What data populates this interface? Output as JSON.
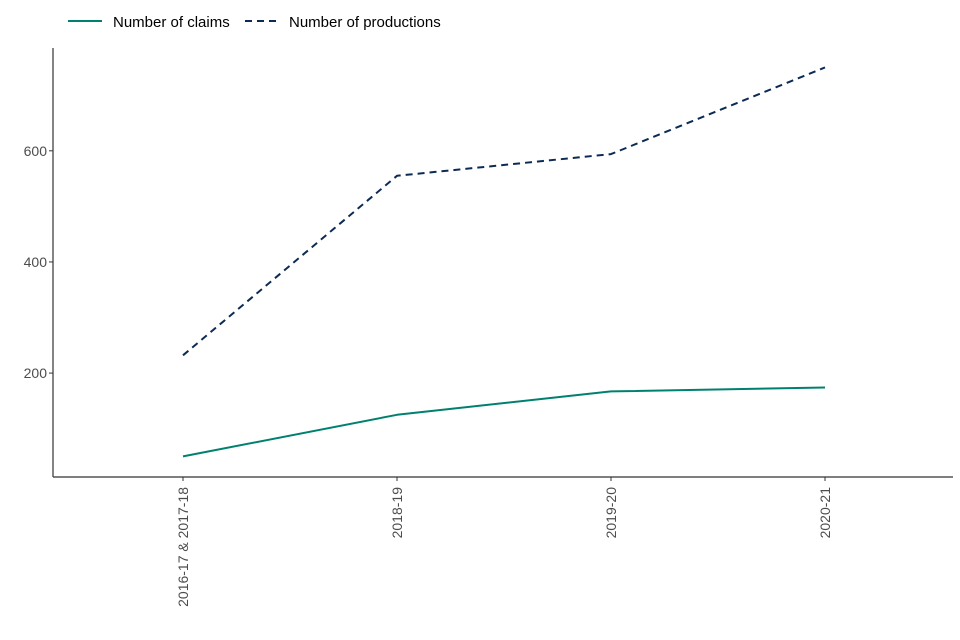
{
  "chart_data": {
    "type": "line",
    "title": "",
    "xlabel": "",
    "ylabel": "",
    "categories": [
      "2016-17 & 2017-18",
      "2018-19",
      "2019-20",
      "2020-21"
    ],
    "series": [
      {
        "name": "Number of claims",
        "values": [
          50,
          125,
          167,
          174
        ],
        "color": "#00806e",
        "dash": "solid"
      },
      {
        "name": "Number of productions",
        "values": [
          232,
          555,
          594,
          750
        ],
        "color": "#0b2b55",
        "dash": "dashed"
      }
    ],
    "ylim": [
      13,
      785
    ],
    "yticks": [
      200,
      400,
      600
    ],
    "legend_position": "top-left",
    "grid": false
  }
}
